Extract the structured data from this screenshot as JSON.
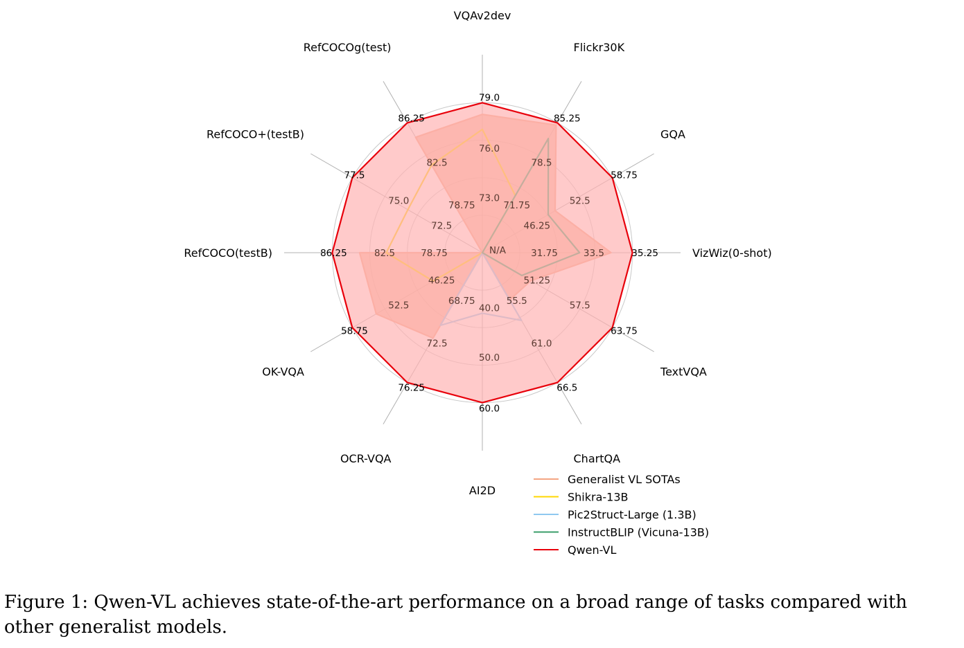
{
  "chart_data": {
    "type": "radar",
    "axes": [
      "VQAv2dev",
      "Flickr30K",
      "GQA",
      "VizWiz(0-shot)",
      "TextVQA",
      "ChartQA",
      "AI2D",
      "OCR-VQA",
      "OK-VQA",
      "RefCOCO(testB)",
      "RefCOCO+(testB)",
      "RefCOCOg(test)"
    ],
    "ticks": [
      [
        "N/A",
        "73.0",
        "76.0",
        "79.0"
      ],
      [
        "N/A",
        "71.75",
        "78.5",
        "85.25"
      ],
      [
        "N/A",
        "46.25",
        "52.5",
        "58.75"
      ],
      [
        "N/A",
        "31.75",
        "33.5",
        "35.25"
      ],
      [
        "N/A",
        "51.25",
        "57.5",
        "63.75"
      ],
      [
        "N/A",
        "55.5",
        "61.0",
        "66.5"
      ],
      [
        "N/A",
        "40.0",
        "50.0",
        "60.0"
      ],
      [
        "N/A",
        "68.75",
        "72.5",
        "76.25"
      ],
      [
        "N/A",
        "46.25",
        "52.5",
        "58.75"
      ],
      [
        "N/A",
        "78.75",
        "82.5",
        "86.25"
      ],
      [
        "N/A",
        "72.5",
        "75.0",
        "77.5"
      ],
      [
        "N/A",
        "78.75",
        "82.5",
        "86.25"
      ]
    ],
    "scale": {
      "min": [
        70,
        65,
        40,
        30,
        45,
        50,
        30,
        65,
        40,
        75,
        70,
        75
      ],
      "max": [
        79,
        85.25,
        58.75,
        35.25,
        63.75,
        66.5,
        60,
        76.25,
        58.75,
        86.25,
        77.5,
        86.25
      ]
    },
    "series": [
      {
        "name": "Generalist VL SOTAs",
        "color": "#f4a582",
        "fill": true,
        "values": [
          78.3,
          84.9,
          50.5,
          34.5,
          52,
          56,
          null,
          72.4,
          55.3,
          84.2,
          null,
          85
        ]
      },
      {
        "name": "Shikra-13B",
        "color": "#ffd700",
        "fill": false,
        "values": [
          77.4,
          73.9,
          null,
          null,
          null,
          null,
          null,
          null,
          47.1,
          82.2,
          74.3,
          82.6
        ]
      },
      {
        "name": "Pic2Struct-Large (1.3B)",
        "color": "#8fc8f0",
        "fill": false,
        "values": [
          null,
          null,
          null,
          null,
          null,
          58.6,
          42.1,
          71.3,
          null,
          null,
          null,
          null
        ]
      },
      {
        "name": "InstructBLIP (Vicuna-13B)",
        "color": "#3a9e6a",
        "fill": false,
        "values": [
          null,
          82.8,
          49.5,
          33.4,
          50.7,
          null,
          null,
          null,
          null,
          null,
          null,
          null
        ]
      },
      {
        "name": "Qwen-VL",
        "color": "#e8000b",
        "fill": true,
        "fill_color": "#ffb3b3",
        "values": [
          79,
          85.25,
          58.75,
          35.25,
          63.75,
          66.5,
          60,
          76.25,
          58.75,
          86.25,
          77.5,
          86.25
        ]
      }
    ],
    "legend_position": "bottom-right"
  },
  "caption": "Figure 1: Qwen-VL achieves state-of-the-art performance on a broad range of tasks compared with other generalist models."
}
